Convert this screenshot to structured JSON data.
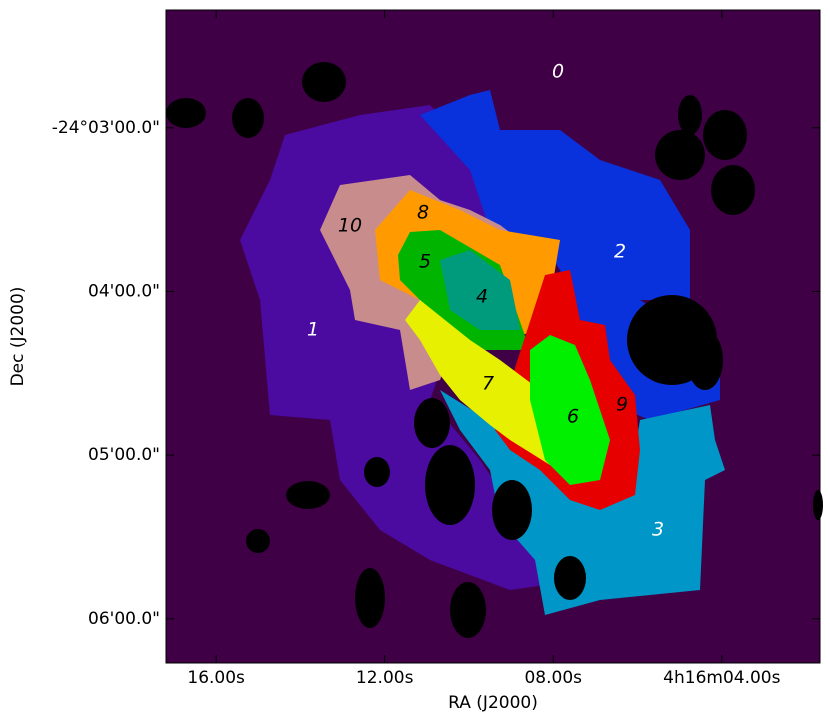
{
  "chart_data": {
    "type": "region-map",
    "xlabel": "RA (J2000)",
    "ylabel": "Dec (J2000)",
    "xlim": [
      17.19,
      1.67
    ],
    "xticks": [
      {
        "value": 16,
        "label": "16.00s"
      },
      {
        "value": 12,
        "label": "12.00s"
      },
      {
        "value": 8,
        "label": "08.00s"
      },
      {
        "value": 4,
        "label": "4h16m04.00s"
      }
    ],
    "ylim": [
      2.28,
      6.27
    ],
    "yticks": [
      {
        "value": 3,
        "label": "-24°03'00.0\""
      },
      {
        "value": 4,
        "label": "04'00.0\""
      },
      {
        "value": 5,
        "label": "05'00.0\""
      },
      {
        "value": 6,
        "label": "06'00.0\""
      }
    ],
    "background": "#400046",
    "mask_color": "#000000",
    "regions": [
      {
        "label": "0",
        "color": "#400046",
        "label_color": "#ffffff"
      },
      {
        "label": "1",
        "color": "#4b0aa0",
        "label_color": "#ffffff"
      },
      {
        "label": "2",
        "color": "#0a32dc",
        "label_color": "#ffffff"
      },
      {
        "label": "3",
        "color": "#0096c8",
        "label_color": "#ffffff"
      },
      {
        "label": "4",
        "color": "#009b7d",
        "label_color": "#000000"
      },
      {
        "label": "5",
        "color": "#00b400",
        "label_color": "#000000"
      },
      {
        "label": "6",
        "color": "#00f000",
        "label_color": "#000000"
      },
      {
        "label": "7",
        "color": "#e6f000",
        "label_color": "#000000"
      },
      {
        "label": "8",
        "color": "#ff9b00",
        "label_color": "#000000"
      },
      {
        "label": "9",
        "color": "#e60000",
        "label_color": "#000000"
      },
      {
        "label": "10",
        "color": "#c88c8c",
        "label_color": "#000000"
      }
    ]
  }
}
